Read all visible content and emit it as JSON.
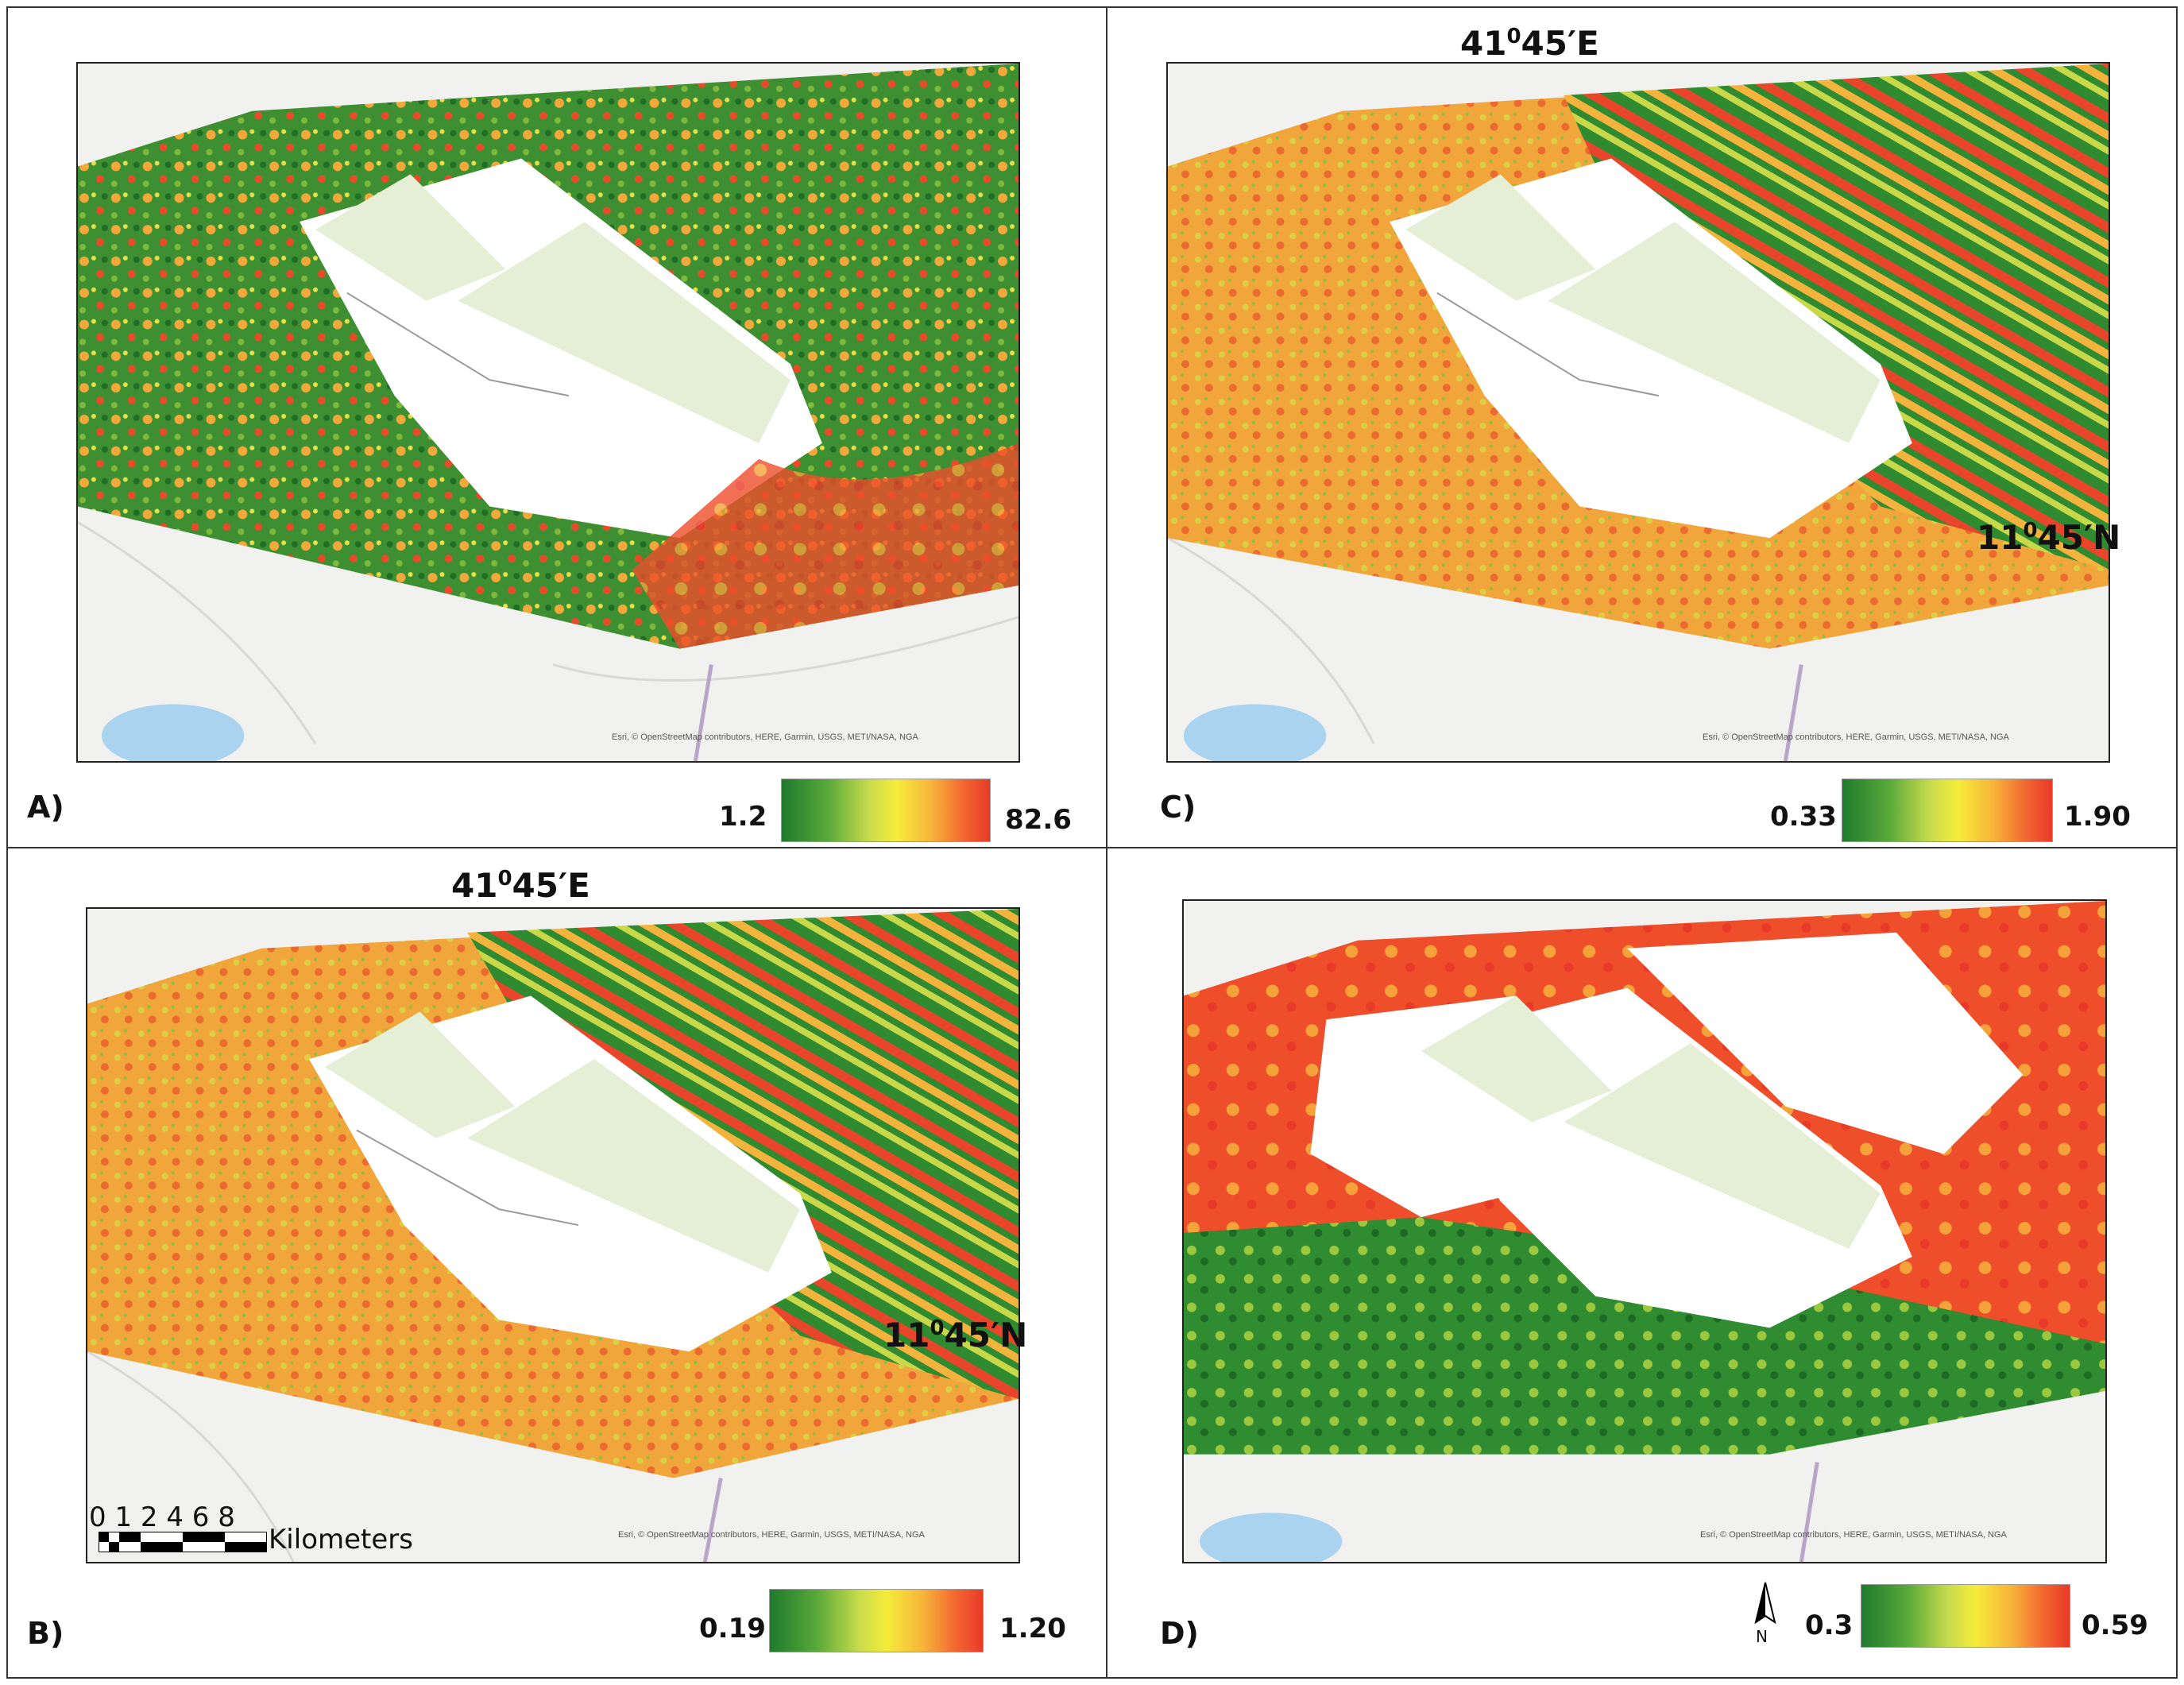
{
  "panels": [
    {
      "letter": "A)",
      "legend_min": "1.2",
      "legend_max": "82.6",
      "credit": "Esri, © OpenStreetMap contributors, HERE, Garmin, USGS, METI/NASA, NGA"
    },
    {
      "letter": "C)",
      "legend_min": "0.33",
      "legend_max": "1.90",
      "coord_top": "41",
      "coord_top_deg": "0",
      "coord_top_rest": "45′E",
      "coord_side": "11",
      "coord_side_deg": "0",
      "coord_side_rest": "45′N",
      "credit": "Esri, © OpenStreetMap contributors, HERE, Garmin, USGS, METI/NASA, NGA"
    },
    {
      "letter": "B)",
      "legend_min": "0.19",
      "legend_max": "1.20",
      "coord_top": "41",
      "coord_top_deg": "0",
      "coord_top_rest": "45′E",
      "coord_side": "11",
      "coord_side_deg": "0",
      "coord_side_rest": "45′N",
      "credit": "Esri, © OpenStreetMap contributors, HERE, Garmin, USGS, METI/NASA, NGA"
    },
    {
      "letter": "D)",
      "legend_min": "0.3",
      "legend_max": "0.59",
      "credit": "Esri, © OpenStreetMap contributors, HERE, Garmin, USGS, METI/NASA, NGA"
    }
  ],
  "scalebar": {
    "ticks": "0 1 2   4    6    8",
    "unit": "Kilometers"
  },
  "north_arrow": {
    "label": "N",
    "icon": "north-arrow-icon"
  },
  "colors": {
    "low": "#1f7a2c",
    "mid": "#f5ec3a",
    "high": "#e83a28",
    "nodata": "#ffffff",
    "basemap": "#f1f1ef"
  }
}
